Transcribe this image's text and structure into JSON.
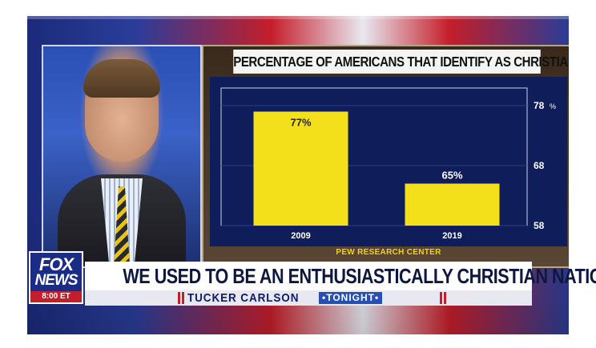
{
  "chart_data": {
    "type": "bar",
    "title": "PERCENTAGE OF AMERICANS THAT IDENTIFY AS CHRISTIANS",
    "categories": [
      "2009",
      "2019"
    ],
    "values": [
      77,
      65
    ],
    "data_labels": [
      "77%",
      "65%"
    ],
    "yticks": [
      58,
      68,
      78
    ],
    "yunit": "%",
    "ylim": [
      58,
      78
    ],
    "source": "PEW RESEARCH CENTER",
    "grid": true,
    "colors": {
      "bar": "#f3e01a",
      "plot_bg": "#0f1e5a",
      "grid": "#2d3f86"
    }
  },
  "logo": {
    "line1": "FOX",
    "line2": "NEWS",
    "time": "8:00 ET"
  },
  "lower_third": {
    "headline": "WE USED TO BE AN ENTHUSIASTICALLY CHRISTIAN NATION",
    "show_name": "TUCKER CARLSON",
    "show_tag": "•TONIGHT•"
  }
}
